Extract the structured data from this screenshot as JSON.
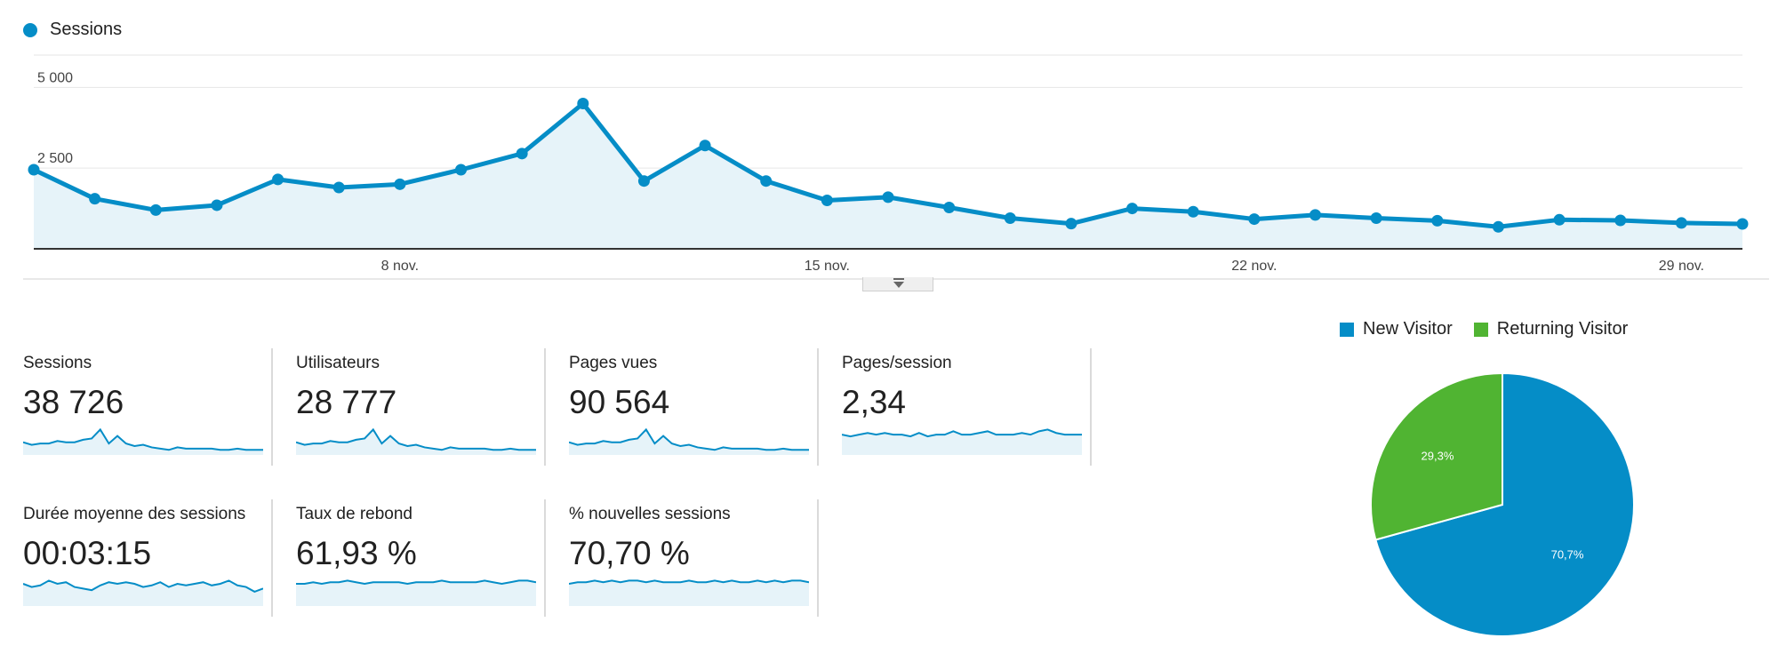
{
  "legend": {
    "label": "Sessions",
    "color": "#058dc7"
  },
  "chart_data": {
    "type": "area",
    "title": "",
    "series": [
      {
        "name": "Sessions",
        "color": "#058dc7",
        "values": [
          2450,
          1550,
          1200,
          1350,
          2150,
          1900,
          2000,
          2450,
          2950,
          4500,
          2100,
          3200,
          2100,
          1500,
          1600,
          1280,
          950,
          780,
          1250,
          1150,
          920,
          1050,
          950,
          870,
          680,
          900,
          880,
          800,
          770
        ]
      }
    ],
    "x_tick_labels": [
      "8 nov.",
      "15 nov.",
      "22 nov.",
      "29 nov."
    ],
    "x_tick_indices": [
      6,
      13,
      20,
      27
    ],
    "y_tick_labels": [
      "2 500",
      "5 000"
    ],
    "y_tick_values": [
      2500,
      5000
    ],
    "ylim": [
      0,
      6000
    ],
    "grid": true
  },
  "metrics": [
    {
      "label": "Sessions",
      "value": "38 726",
      "spark": [
        10,
        8,
        9,
        9,
        11,
        10,
        10,
        12,
        13,
        20,
        9,
        15,
        9,
        7,
        8,
        6,
        5,
        4,
        6,
        5,
        5,
        5,
        5,
        4,
        4,
        5,
        4,
        4,
        4
      ]
    },
    {
      "label": "Utilisateurs",
      "value": "28 777",
      "spark": [
        10,
        8,
        9,
        9,
        11,
        10,
        10,
        12,
        13,
        20,
        9,
        15,
        9,
        7,
        8,
        6,
        5,
        4,
        6,
        5,
        5,
        5,
        5,
        4,
        4,
        5,
        4,
        4,
        4
      ]
    },
    {
      "label": "Pages vues",
      "value": "90 564",
      "spark": [
        10,
        8,
        9,
        9,
        11,
        10,
        10,
        12,
        13,
        20,
        9,
        15,
        9,
        7,
        8,
        6,
        5,
        4,
        6,
        5,
        5,
        5,
        5,
        4,
        4,
        5,
        4,
        4,
        4
      ]
    },
    {
      "label": "Pages/session",
      "value": "2,34",
      "spark": [
        12,
        11,
        12,
        13,
        12,
        13,
        12,
        12,
        11,
        13,
        11,
        12,
        12,
        14,
        12,
        12,
        13,
        14,
        12,
        12,
        12,
        13,
        12,
        14,
        15,
        13,
        12,
        12,
        12
      ]
    },
    {
      "label": "Durée moyenne des sessions",
      "value": "00:03:15",
      "spark": [
        14,
        12,
        13,
        16,
        14,
        15,
        12,
        11,
        10,
        13,
        15,
        14,
        15,
        14,
        12,
        13,
        15,
        12,
        14,
        13,
        14,
        15,
        13,
        14,
        16,
        13,
        12,
        9,
        11
      ]
    },
    {
      "label": "Taux de rebond",
      "value": "61,93 %",
      "spark": [
        14,
        14,
        15,
        14,
        15,
        15,
        16,
        15,
        14,
        15,
        15,
        15,
        15,
        14,
        15,
        15,
        15,
        16,
        15,
        15,
        15,
        15,
        16,
        15,
        14,
        15,
        16,
        16,
        15
      ]
    },
    {
      "label": "% nouvelles sessions",
      "value": "70,70 %",
      "spark": [
        14,
        15,
        15,
        16,
        15,
        16,
        15,
        16,
        16,
        15,
        16,
        15,
        15,
        15,
        16,
        15,
        15,
        16,
        15,
        16,
        15,
        15,
        16,
        15,
        16,
        15,
        16,
        16,
        15
      ]
    }
  ],
  "pie": {
    "legend": [
      {
        "label": "New Visitor",
        "color": "#058dc7"
      },
      {
        "label": "Returning Visitor",
        "color": "#50b432"
      }
    ],
    "slices": [
      {
        "label": "New Visitor",
        "value": 70.7,
        "text": "70,7%",
        "color": "#058dc7"
      },
      {
        "label": "Returning Visitor",
        "value": 29.3,
        "text": "29,3%",
        "color": "#50b432"
      }
    ]
  }
}
